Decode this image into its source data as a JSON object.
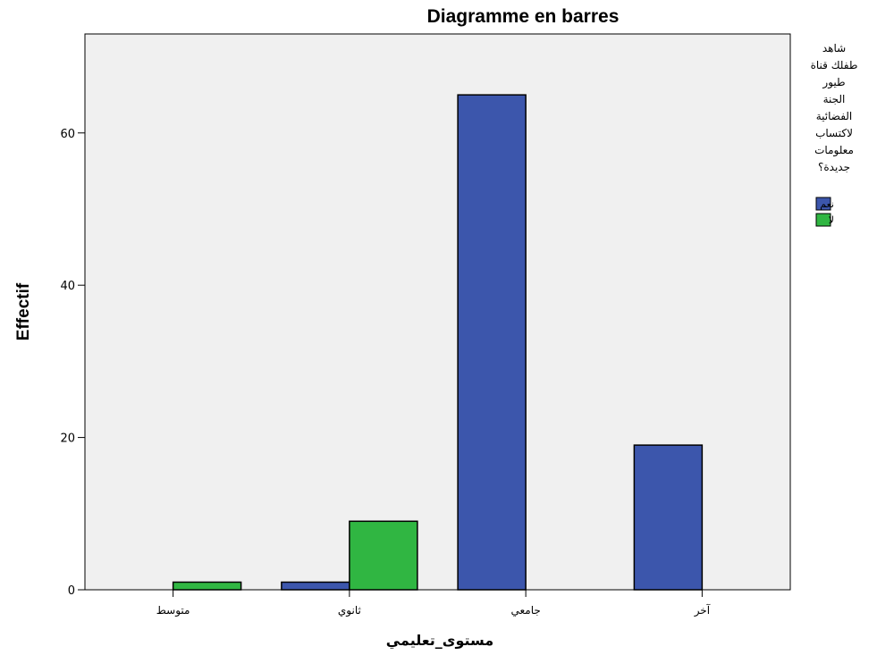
{
  "chart_data": {
    "type": "bar",
    "title": "Diagramme en barres",
    "xlabel": "مستوى_تعليمي",
    "ylabel": "Effectif",
    "categories": [
      "متوسط",
      "ثانوي",
      "جامعي",
      "آخر"
    ],
    "series": [
      {
        "name": "نعم",
        "color": "#3c56ac",
        "values": [
          0,
          1,
          65,
          19
        ]
      },
      {
        "name": "لا",
        "color": "#30b642",
        "values": [
          1,
          9,
          0,
          0
        ]
      }
    ],
    "ylim": [
      0,
      73
    ],
    "yticks": [
      0,
      20,
      40,
      60
    ],
    "legend": {
      "title_lines": [
        "شاهد",
        "طفلك قناة",
        "طيور",
        "الجنة",
        "الفضائية",
        "لاكتساب",
        "معلومات",
        "جديدة؟"
      ],
      "placement": "right"
    },
    "grid": false,
    "plot_background": "#f0f0f0"
  }
}
